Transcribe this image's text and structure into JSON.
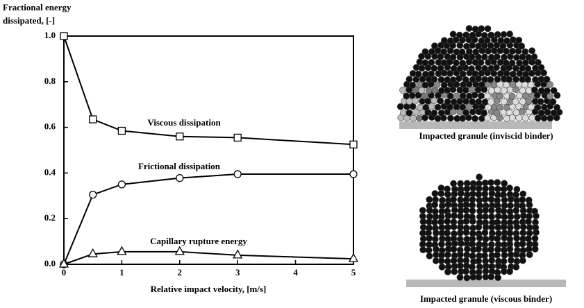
{
  "chart_data": {
    "type": "line",
    "ylabel": [
      "Fractional energy",
      "dissipated,  [-]"
    ],
    "xlabel": "Relative impact velocity, [m/s]",
    "x": [
      0,
      0.5,
      1,
      2,
      3,
      5
    ],
    "series": [
      {
        "name": "Viscous dissipation",
        "color": "#000000",
        "marker": "square",
        "values": [
          1.0,
          0.635,
          0.585,
          0.56,
          0.555,
          0.525
        ]
      },
      {
        "name": "Frictional dissipation",
        "color": "#000000",
        "marker": "circle",
        "values": [
          0,
          0.305,
          0.35,
          0.378,
          0.395,
          0.395
        ]
      },
      {
        "name": "Capillary rupture energy",
        "color": "#000000",
        "marker": "triangle",
        "values": [
          0,
          0.045,
          0.055,
          0.055,
          0.04,
          0.024
        ]
      }
    ],
    "xlim": [
      0,
      5
    ],
    "xticks": [
      0,
      1,
      2,
      3,
      4,
      5
    ],
    "ylim": [
      0,
      1
    ],
    "yticks": [
      {
        "value": 0,
        "label": "0.0"
      },
      0.2,
      0.4,
      0.6,
      0.8,
      {
        "value": 1,
        "label": "1.0"
      }
    ]
  },
  "figures": [
    {
      "caption": "Impacted granule (inviscid binder)"
    },
    {
      "caption": "Impacted granule (viscous binder)"
    }
  ]
}
